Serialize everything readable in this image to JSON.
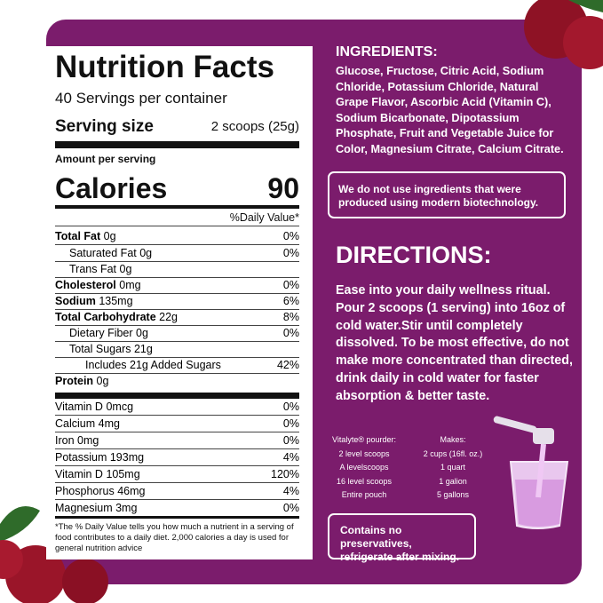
{
  "nutrition": {
    "title": "Nutrition Facts",
    "servings": "40 Servings per container",
    "serving_size_label": "Serving size",
    "serving_size_value": "2 scoops (25g)",
    "amount_per_serving": "Amount per serving",
    "calories_label": "Calories",
    "calories_value": 90,
    "dv_header": "%Daily Value*",
    "rows": [
      {
        "label": "Total Fat",
        "amount": "0g",
        "dv": "0%"
      },
      {
        "label": "Saturated Fat",
        "amount": "0g",
        "dv": "0%"
      },
      {
        "label": "Trans Fat",
        "amount": "0g"
      },
      {
        "label": "Cholesterol",
        "amount": "0mg",
        "dv": "0%"
      },
      {
        "label": "Sodium",
        "amount": "135mg",
        "dv": "6%"
      },
      {
        "label": "Total Carbohydrate",
        "amount": "22g",
        "dv": "8%"
      },
      {
        "label": "Dietary Fiber",
        "amount": "0g",
        "dv": "0%"
      },
      {
        "label": "Total Sugars",
        "amount": "21g"
      },
      {
        "label": "Includes 21g Added Sugars",
        "dv": "42%"
      },
      {
        "label": "Protein",
        "amount": "0g"
      }
    ],
    "minerals": [
      {
        "label": "Vitamin D",
        "amount": "0mcg",
        "dv": "0%"
      },
      {
        "label": "Calcium",
        "amount": "4mg",
        "dv": "0%"
      },
      {
        "label": "Iron",
        "amount": "0mg",
        "dv": "0%"
      },
      {
        "label": "Potassium",
        "amount": "193mg",
        "dv": "4%"
      },
      {
        "label": "Vitamin D",
        "amount": "105mg",
        "dv": "120%"
      },
      {
        "label": "Phosphorus",
        "amount": "46mg",
        "dv": "4%"
      },
      {
        "label": "Magnesium",
        "amount": "3mg",
        "dv": "0%"
      }
    ],
    "footnote": "*The % Daily Value tells you how much a nutrient in a serving of food contributes to a daily diet. 2,000 calories a day is used for general nutrition advice"
  },
  "ingredients": {
    "heading": "INGREDIENTS:",
    "text": "Glucose, Fructose, Citric Acid, Sodium Chloride, Potassium Chloride, Natural Grape Flavor, Ascorbic Acid (Vitamin C), Sodium Bicarbonate, Dipotassium Phosphate, Fruit and Vegetable Juice for Color, Magnesium Citrate, Calcium Citrate.",
    "note": "We do not use ingredients that were produced using modern biotechnology."
  },
  "directions": {
    "heading": "DIRECTIONS:",
    "text": "Ease into your daily wellness ritual. Pour 2 scoops (1 serving) into 16oz of cold water.Stir until completely dissolved. To be most effective, do not make more concentrated than directed, drink daily in cold water for faster absorption & better taste.",
    "table": {
      "headers": [
        "Vitalyte® pourder:",
        "Makes:"
      ],
      "rows": [
        [
          "2 level scoops",
          "2 cups (16fl. oz.)"
        ],
        [
          "A levelscoops",
          "1 quart"
        ],
        [
          "16 level scoops",
          "1 galion"
        ],
        [
          "Entire pouch",
          "5 gallons"
        ]
      ]
    },
    "note": "Contains no preservatives, refrigerate after mixing."
  }
}
